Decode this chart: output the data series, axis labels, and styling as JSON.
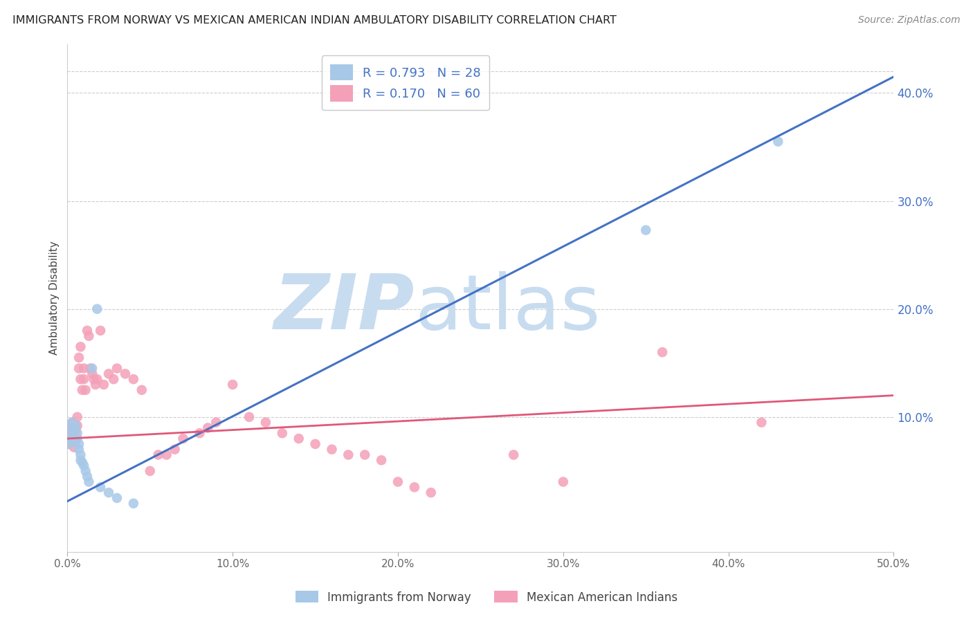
{
  "title": "IMMIGRANTS FROM NORWAY VS MEXICAN AMERICAN INDIAN AMBULATORY DISABILITY CORRELATION CHART",
  "source": "Source: ZipAtlas.com",
  "ylabel": "Ambulatory Disability",
  "legend_label_blue": "Immigrants from Norway",
  "legend_label_pink": "Mexican American Indians",
  "R_blue": 0.793,
  "N_blue": 28,
  "R_pink": 0.17,
  "N_pink": 60,
  "xlim": [
    0.0,
    0.5
  ],
  "ylim": [
    -0.025,
    0.445
  ],
  "xticks": [
    0.0,
    0.1,
    0.2,
    0.3,
    0.4,
    0.5
  ],
  "yticks_right": [
    0.1,
    0.2,
    0.3,
    0.4
  ],
  "color_blue": "#A8C8E8",
  "color_pink": "#F4A0B8",
  "line_color_blue": "#4472C4",
  "line_color_pink": "#E05878",
  "background": "#FFFFFF",
  "watermark_zip": "ZIP",
  "watermark_atlas": "atlas",
  "watermark_color_zip": "#C8DCF0",
  "watermark_color_atlas": "#C8DCF0",
  "blue_x": [
    0.001,
    0.002,
    0.002,
    0.003,
    0.003,
    0.004,
    0.004,
    0.005,
    0.005,
    0.006,
    0.006,
    0.007,
    0.007,
    0.008,
    0.008,
    0.009,
    0.01,
    0.011,
    0.012,
    0.013,
    0.015,
    0.018,
    0.02,
    0.025,
    0.03,
    0.04,
    0.35,
    0.43
  ],
  "blue_y": [
    0.075,
    0.08,
    0.09,
    0.085,
    0.095,
    0.082,
    0.088,
    0.078,
    0.092,
    0.085,
    0.08,
    0.075,
    0.07,
    0.065,
    0.06,
    0.058,
    0.055,
    0.05,
    0.045,
    0.04,
    0.145,
    0.2,
    0.035,
    0.03,
    0.025,
    0.02,
    0.273,
    0.355
  ],
  "pink_x": [
    0.001,
    0.001,
    0.002,
    0.002,
    0.003,
    0.003,
    0.004,
    0.004,
    0.005,
    0.005,
    0.006,
    0.006,
    0.007,
    0.007,
    0.008,
    0.008,
    0.009,
    0.01,
    0.01,
    0.011,
    0.012,
    0.013,
    0.014,
    0.015,
    0.016,
    0.017,
    0.018,
    0.02,
    0.022,
    0.025,
    0.028,
    0.03,
    0.035,
    0.04,
    0.045,
    0.05,
    0.055,
    0.06,
    0.065,
    0.07,
    0.08,
    0.085,
    0.09,
    0.1,
    0.11,
    0.12,
    0.13,
    0.14,
    0.15,
    0.16,
    0.17,
    0.18,
    0.19,
    0.2,
    0.21,
    0.22,
    0.27,
    0.3,
    0.36,
    0.42
  ],
  "pink_y": [
    0.075,
    0.085,
    0.08,
    0.09,
    0.085,
    0.095,
    0.082,
    0.072,
    0.078,
    0.088,
    0.092,
    0.1,
    0.155,
    0.145,
    0.165,
    0.135,
    0.125,
    0.145,
    0.135,
    0.125,
    0.18,
    0.175,
    0.145,
    0.14,
    0.135,
    0.13,
    0.135,
    0.18,
    0.13,
    0.14,
    0.135,
    0.145,
    0.14,
    0.135,
    0.125,
    0.05,
    0.065,
    0.065,
    0.07,
    0.08,
    0.085,
    0.09,
    0.095,
    0.13,
    0.1,
    0.095,
    0.085,
    0.08,
    0.075,
    0.07,
    0.065,
    0.065,
    0.06,
    0.04,
    0.035,
    0.03,
    0.065,
    0.04,
    0.16,
    0.095
  ],
  "blue_line_x": [
    0.0,
    0.5
  ],
  "blue_line_y": [
    0.022,
    0.415
  ],
  "pink_line_x": [
    0.0,
    0.5
  ],
  "pink_line_y": [
    0.08,
    0.12
  ]
}
